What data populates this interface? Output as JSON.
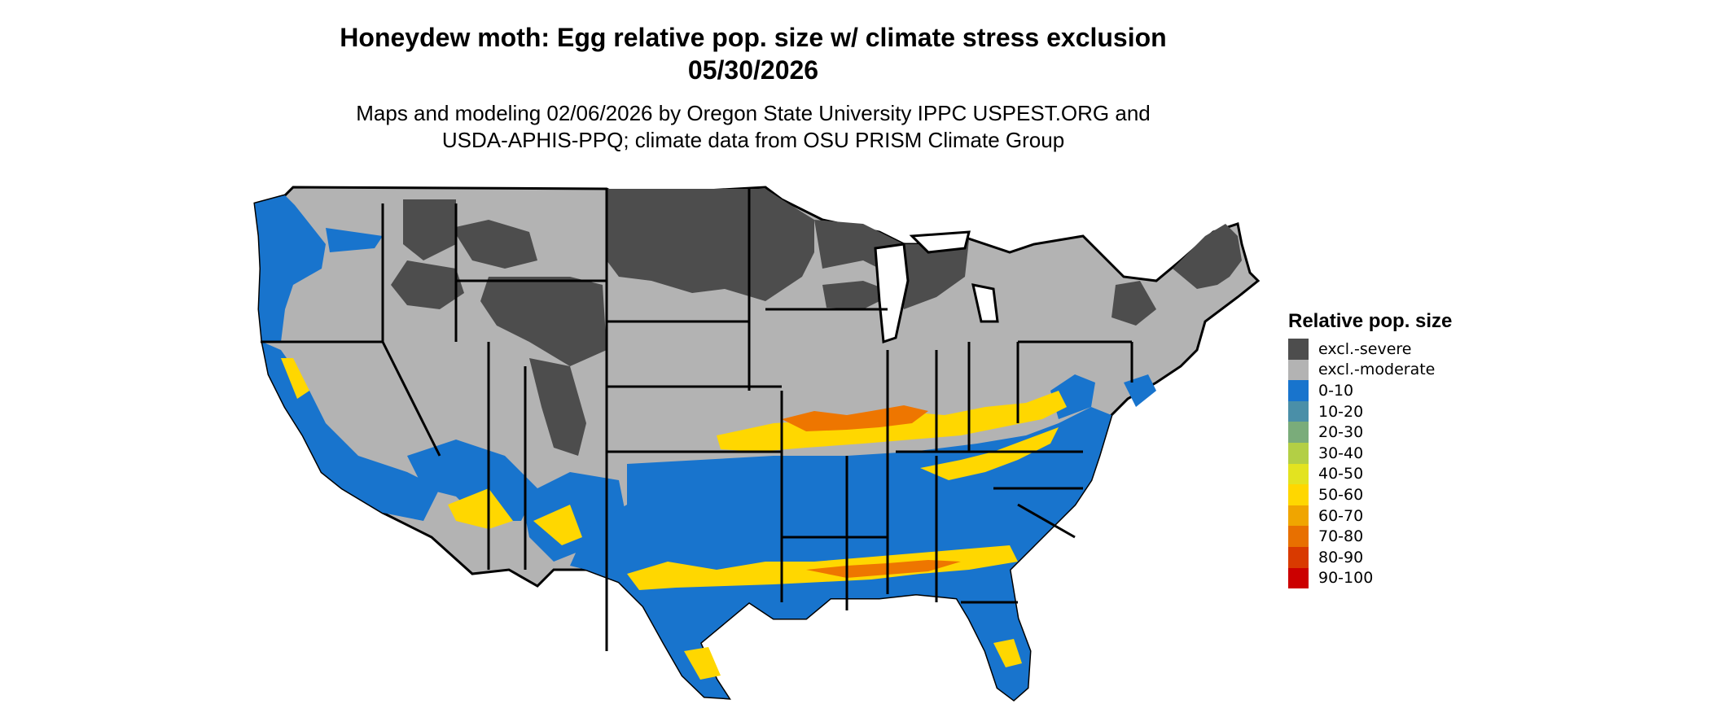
{
  "title_line1": "Honeydew moth: Egg relative pop. size w/ climate stress exclusion",
  "title_line2": "05/30/2026",
  "subtitle_line1": "Maps and modeling 02/06/2026 by Oregon State University IPPC USPEST.ORG and",
  "subtitle_line2": "USDA-APHIS-PPQ; climate data from OSU PRISM Climate Group",
  "map": {
    "region": "Contiguous United States",
    "colors": {
      "severe": "#4d4d4d",
      "moderate": "#b3b3b3",
      "low": "#1874cd",
      "mid_yellow": "#ffd700",
      "mid_orange": "#ee7600",
      "boundary": "#000000",
      "water": "#ffffff"
    }
  },
  "legend": {
    "title": "Relative pop. size",
    "items": [
      {
        "label": "excl.-severe",
        "color": "#4d4d4d"
      },
      {
        "label": "excl.-moderate",
        "color": "#b3b3b3"
      },
      {
        "label": "0-10",
        "color": "#1874cd"
      },
      {
        "label": "10-20",
        "color": "#4a8fa8"
      },
      {
        "label": "20-30",
        "color": "#7aac7a"
      },
      {
        "label": "30-40",
        "color": "#b3cf45"
      },
      {
        "label": "40-50",
        "color": "#e3e320"
      },
      {
        "label": "50-60",
        "color": "#ffd700"
      },
      {
        "label": "60-70",
        "color": "#f0a500"
      },
      {
        "label": "70-80",
        "color": "#e87000"
      },
      {
        "label": "80-90",
        "color": "#d93a00"
      },
      {
        "label": "90-100",
        "color": "#cc0000"
      }
    ]
  }
}
